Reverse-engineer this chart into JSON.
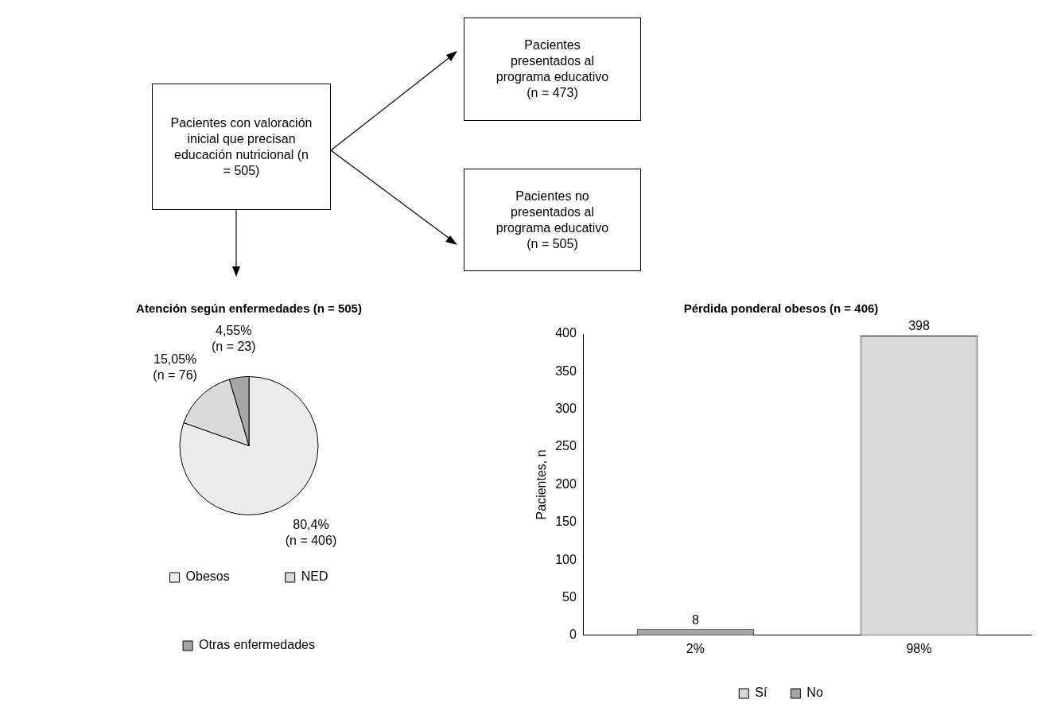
{
  "chart_data": [
    {
      "type": "other",
      "annotations": [
        "Pacientes con valoración inicial que precisan educación nutricional (n = 505)",
        "Pacientes presentados al programa educativo (n = 473)",
        "Pacientes no presentados al programa educativo (n = 505)"
      ]
    },
    {
      "type": "pie",
      "title": "Atención según enfermedades (n = 505)",
      "categories": [
        "Obesos",
        "NED",
        "Otras enfermedades"
      ],
      "values": [
        80.4,
        15.05,
        4.55
      ],
      "colors": [
        "#ebebeb",
        "#d9d9d9",
        "#a6a6a6"
      ],
      "value_labels": [
        "80,4%\n(n = 406)",
        "15,05%\n(n = 76)",
        "4,55%\n(n = 23)"
      ],
      "legend": "bottom"
    },
    {
      "type": "bar",
      "title": "Pérdida ponderal obesos (n = 406)",
      "categories": [
        "2%",
        "98%"
      ],
      "ylabel": "Pacientes, n",
      "ylim": [
        0,
        400
      ],
      "yticks": [
        0,
        50,
        100,
        150,
        200,
        250,
        300,
        350,
        400
      ],
      "series": [
        {
          "name": "Sí",
          "color": "#d9d9d9",
          "values": [
            null,
            398
          ]
        },
        {
          "name": "No",
          "color": "#a6a6a6",
          "values": [
            8,
            null
          ]
        }
      ],
      "data_labels": true,
      "legend": "bottom",
      "grid": false
    }
  ]
}
